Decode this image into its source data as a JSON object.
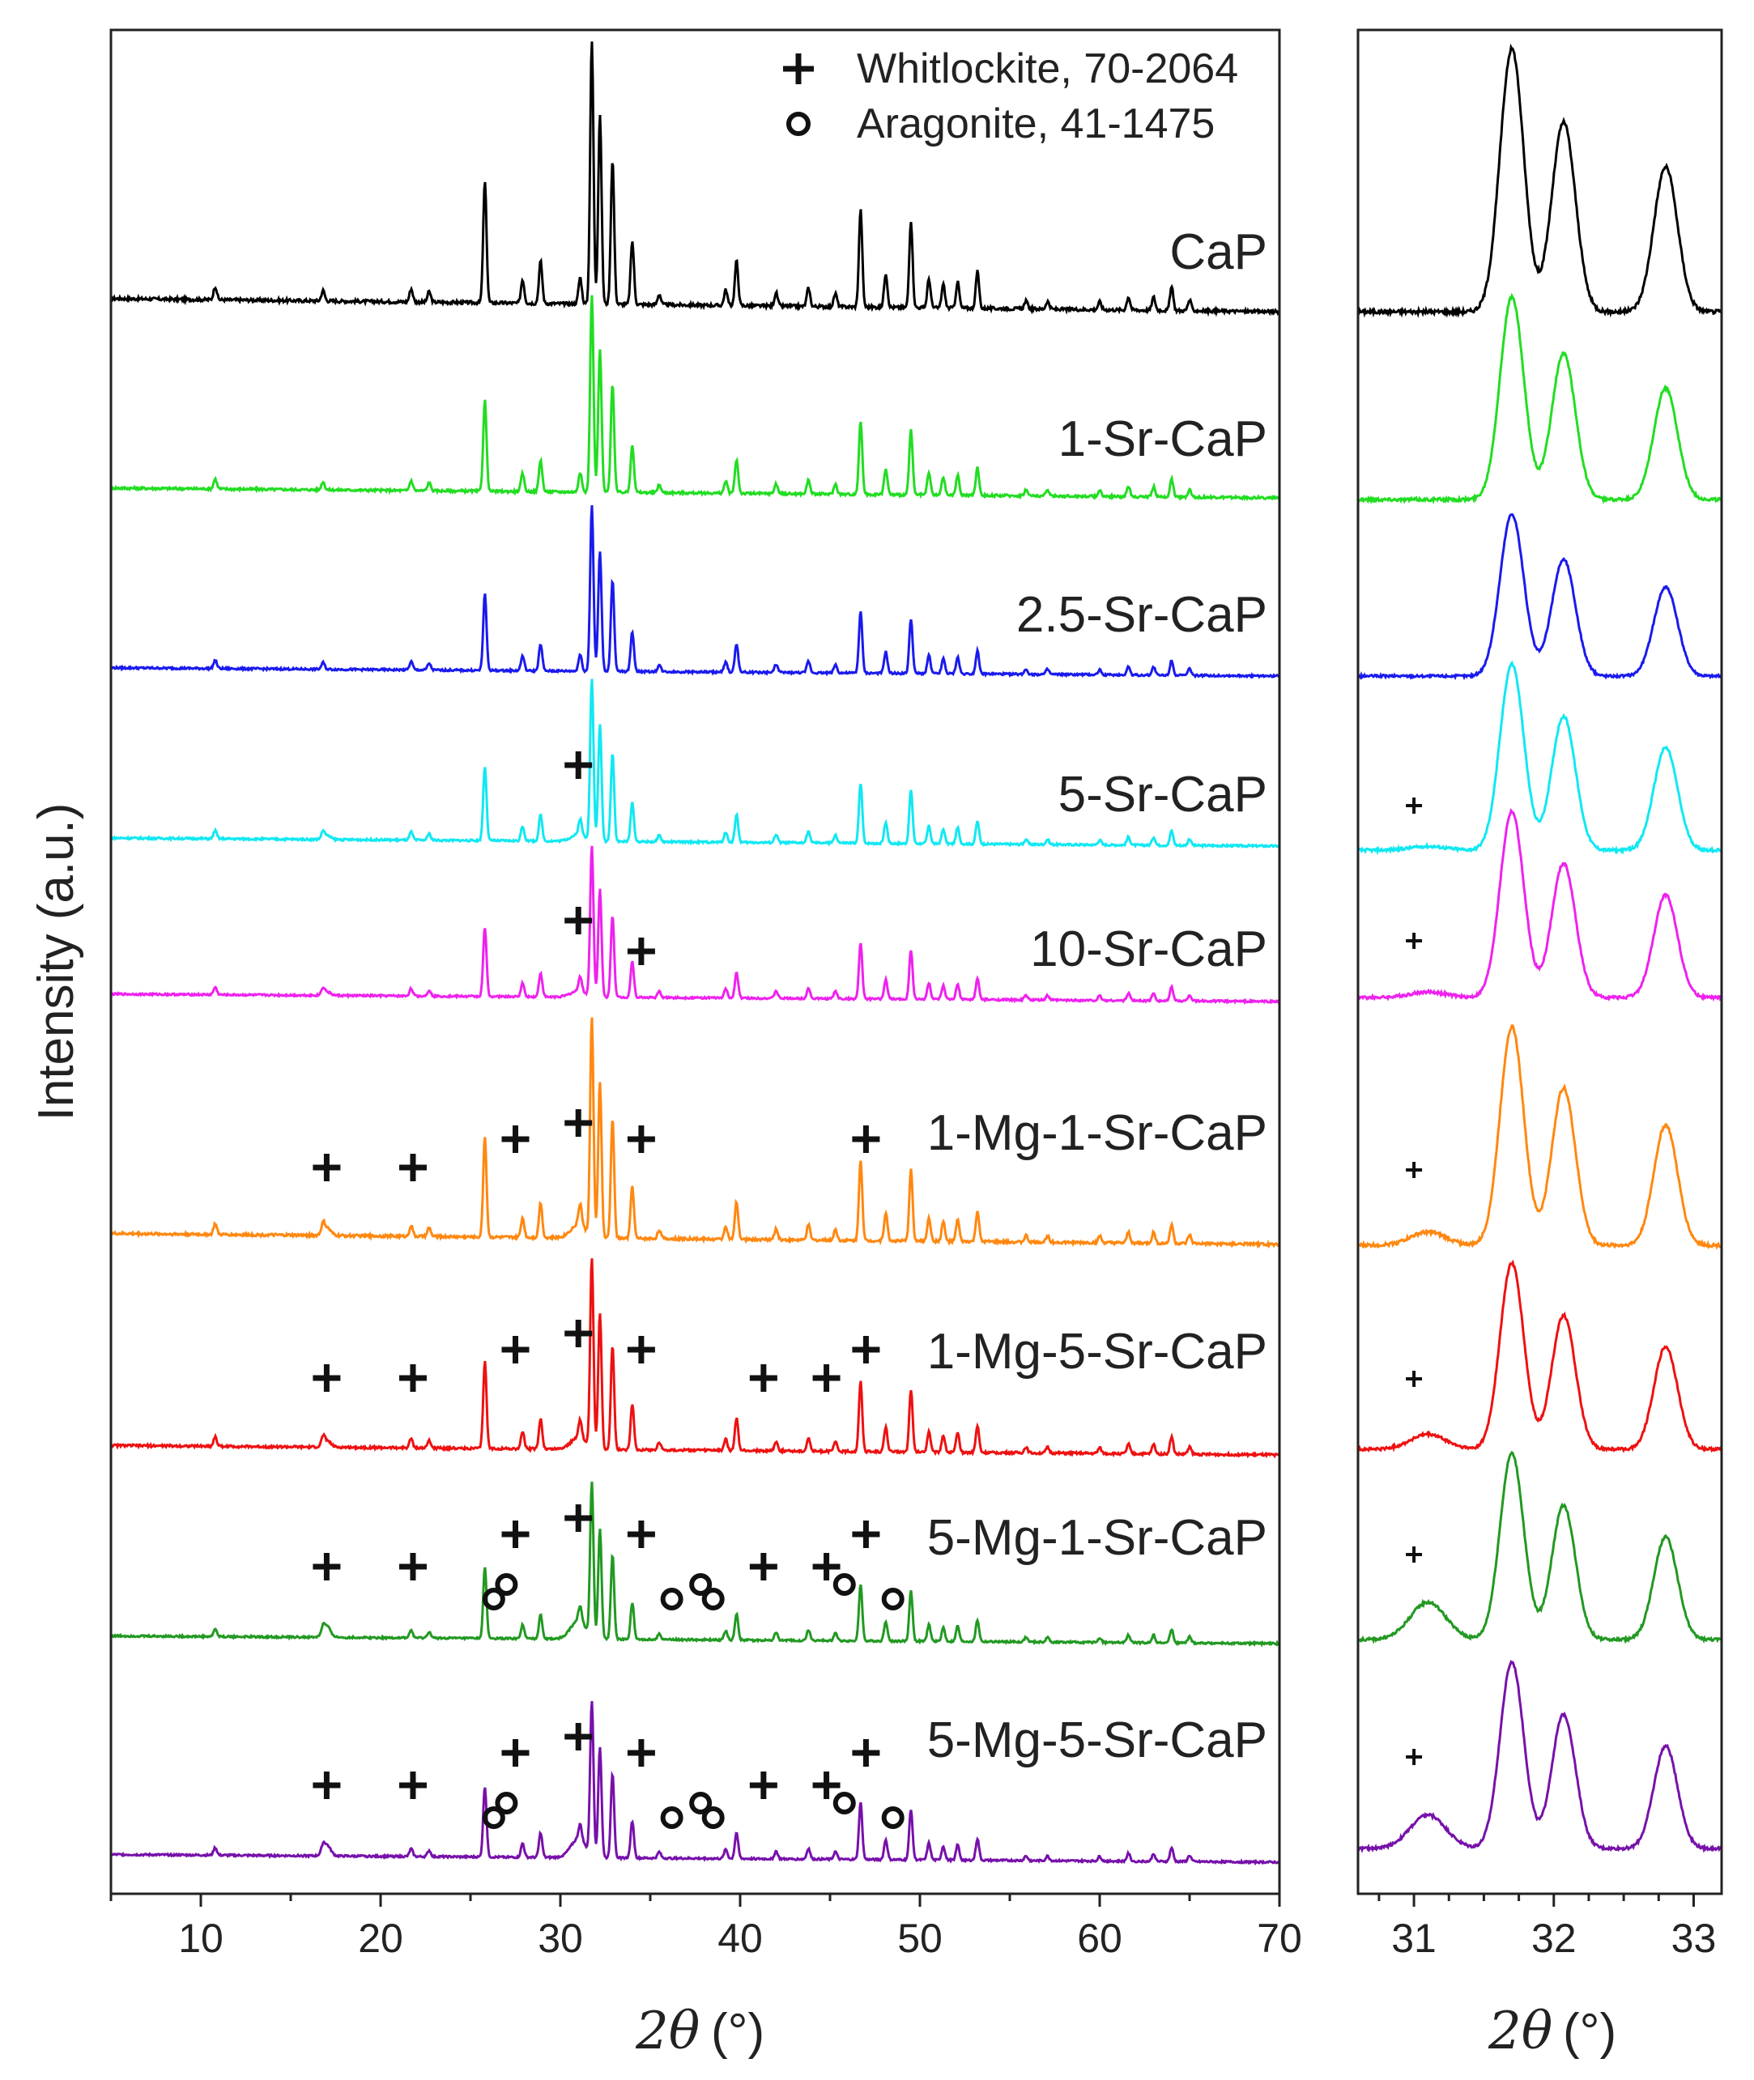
{
  "chart_data": [
    {
      "type": "line",
      "panel": "main",
      "xlabel_symbol": "2θ",
      "xlabel_unit": "(°)",
      "ylabel": "Intensity (a.u.)",
      "xlim": [
        5,
        70
      ],
      "xticks": [
        10,
        20,
        30,
        40,
        50,
        60,
        70
      ],
      "grid": false,
      "legend_position": "top-right",
      "legend": [
        {
          "marker": "+",
          "label": "Whitlockite, 70-2064"
        },
        {
          "marker": "o",
          "label": "Aragonite, 41-1475"
        }
      ],
      "peaks": [
        {
          "x": 10.8,
          "h": 0.05
        },
        {
          "x": 16.8,
          "h": 0.04
        },
        {
          "x": 21.7,
          "h": 0.05
        },
        {
          "x": 22.7,
          "h": 0.04
        },
        {
          "x": 25.8,
          "h": 0.46
        },
        {
          "x": 27.9,
          "h": 0.09
        },
        {
          "x": 28.9,
          "h": 0.16
        },
        {
          "x": 31.1,
          "h": 0.1
        },
        {
          "x": 31.75,
          "h": 1.0
        },
        {
          "x": 32.2,
          "h": 0.72
        },
        {
          "x": 32.9,
          "h": 0.55
        },
        {
          "x": 34.0,
          "h": 0.24
        },
        {
          "x": 35.5,
          "h": 0.04
        },
        {
          "x": 39.2,
          "h": 0.06
        },
        {
          "x": 39.8,
          "h": 0.17
        },
        {
          "x": 42.0,
          "h": 0.05
        },
        {
          "x": 43.8,
          "h": 0.07
        },
        {
          "x": 45.3,
          "h": 0.05
        },
        {
          "x": 46.7,
          "h": 0.37
        },
        {
          "x": 48.1,
          "h": 0.13
        },
        {
          "x": 49.5,
          "h": 0.33
        },
        {
          "x": 50.5,
          "h": 0.11
        },
        {
          "x": 51.3,
          "h": 0.09
        },
        {
          "x": 52.1,
          "h": 0.1
        },
        {
          "x": 53.2,
          "h": 0.14
        },
        {
          "x": 55.9,
          "h": 0.03
        },
        {
          "x": 57.1,
          "h": 0.03
        },
        {
          "x": 60.0,
          "h": 0.03
        },
        {
          "x": 61.6,
          "h": 0.05
        },
        {
          "x": 63.0,
          "h": 0.05
        },
        {
          "x": 64.0,
          "h": 0.09
        },
        {
          "x": 65.0,
          "h": 0.04
        }
      ],
      "series": [
        {
          "name": "CaP",
          "color": "#000000",
          "scale": 1.0,
          "hump": 0,
          "whitlockite": [],
          "aragonite": []
        },
        {
          "name": "1-Sr-CaP",
          "color": "#22dd22",
          "scale": 0.62,
          "hump": 0,
          "whitlockite": [],
          "aragonite": []
        },
        {
          "name": "2.5-Sr-CaP",
          "color": "#1a1aee",
          "scale": 0.62,
          "hump": 0,
          "whitlockite": [],
          "aragonite": []
        },
        {
          "name": "5-Sr-CaP",
          "color": "#11e8f2",
          "scale": 0.6,
          "hump": 0.04,
          "whitlockite": [
            31.0
          ],
          "aragonite": []
        },
        {
          "name": "10-Sr-CaP",
          "color": "#ee22ee",
          "scale": 0.55,
          "hump": 0.04,
          "whitlockite": [
            31.0,
            34.5
          ],
          "aragonite": []
        },
        {
          "name": "1-Mg-1-Sr-CaP",
          "color": "#ff8811",
          "scale": 0.78,
          "hump": 0.06,
          "whitlockite": [
            17.0,
            21.8,
            27.5,
            31.0,
            34.5,
            47.0
          ],
          "aragonite": []
        },
        {
          "name": "1-Mg-5-Sr-CaP",
          "color": "#ee1111",
          "scale": 0.62,
          "hump": 0.06,
          "whitlockite": [
            17.0,
            21.8,
            27.5,
            31.0,
            34.5,
            41.3,
            44.8,
            47.0
          ],
          "aragonite": []
        },
        {
          "name": "5-Mg-1-Sr-CaP",
          "color": "#229922",
          "scale": 0.55,
          "hump": 0.12,
          "whitlockite": [
            17.0,
            21.8,
            27.5,
            31.0,
            34.5,
            41.3,
            44.8,
            47.0
          ],
          "aragonite": [
            26.3,
            27.0,
            36.2,
            37.8,
            38.5,
            45.8,
            48.5
          ]
        },
        {
          "name": "5-Mg-5-Sr-CaP",
          "color": "#7711aa",
          "scale": 0.55,
          "hump": 0.12,
          "whitlockite": [
            17.0,
            21.8,
            27.5,
            31.0,
            34.5,
            41.3,
            44.8,
            47.0
          ],
          "aragonite": [
            26.3,
            27.0,
            36.2,
            37.8,
            38.5,
            45.8,
            48.5
          ]
        }
      ]
    },
    {
      "type": "line",
      "panel": "inset",
      "xlabel_symbol": "2θ",
      "xlabel_unit": "(°)",
      "xlim": [
        30.6,
        33.2
      ],
      "xticks": [
        31,
        32,
        33
      ],
      "grid": false,
      "peaks": [
        {
          "x": 31.7,
          "h": 1.0
        },
        {
          "x": 32.07,
          "h": 0.72
        },
        {
          "x": 32.8,
          "h": 0.55
        }
      ],
      "whitlockite_marker_x": 31.0,
      "series": [
        {
          "name": "CaP",
          "shoulder": 0,
          "whitlockite": false
        },
        {
          "name": "1-Sr-CaP",
          "shoulder": 0,
          "whitlockite": false
        },
        {
          "name": "2.5-Sr-CaP",
          "shoulder": 0,
          "whitlockite": false
        },
        {
          "name": "5-Sr-CaP",
          "shoulder": 0.02,
          "whitlockite": true
        },
        {
          "name": "10-Sr-CaP",
          "shoulder": 0.03,
          "whitlockite": true
        },
        {
          "name": "1-Mg-1-Sr-CaP",
          "shoulder": 0.06,
          "whitlockite": true
        },
        {
          "name": "1-Mg-5-Sr-CaP",
          "shoulder": 0.08,
          "whitlockite": true
        },
        {
          "name": "5-Mg-1-Sr-CaP",
          "shoulder": 0.2,
          "whitlockite": true
        },
        {
          "name": "5-Mg-5-Sr-CaP",
          "shoulder": 0.18,
          "whitlockite": true
        }
      ]
    }
  ]
}
